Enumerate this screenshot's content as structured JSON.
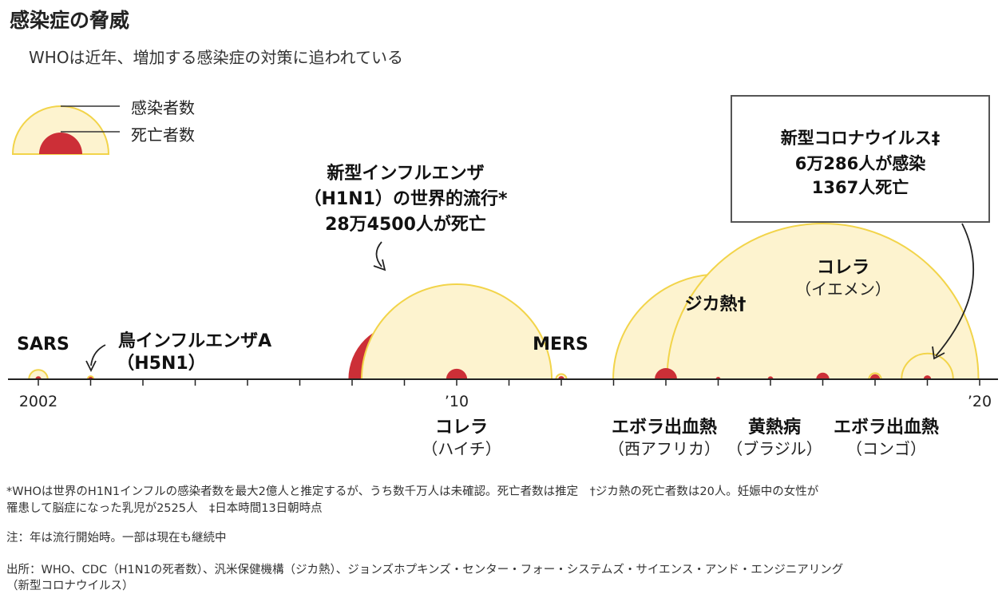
{
  "title": "感染症の脅威",
  "subtitle": "WHOは近年、増加する感染症の対策に追われている",
  "legend": {
    "infected_label": "感染者数",
    "deaths_label": "死亡者数"
  },
  "colors": {
    "infected_fill": "#fdf3cf",
    "infected_stroke": "#f2d44a",
    "deaths_fill": "#cc2f37",
    "axis": "#222222"
  },
  "chart_data": {
    "type": "bubble-timeline",
    "x_ticks": [
      {
        "year": 2002,
        "label": "2002"
      },
      {
        "year": 2010,
        "label": "’10"
      },
      {
        "year": 2020,
        "label": "’20"
      }
    ],
    "xlim": [
      2002,
      2020
    ],
    "events": [
      {
        "name": "SARS",
        "year": 2002,
        "infected": 8000,
        "deaths": 800
      },
      {
        "name": "鳥インフルエンザA",
        "name_sub": "（H5N1）",
        "year": 2003,
        "infected": 850,
        "deaths": 450
      },
      {
        "name": "新型インフルエンザ",
        "name_sub": "（H1N1）の世界的流行*",
        "note": "28万4500人が死亡",
        "year": 2009,
        "infected": null,
        "deaths": 284500
      },
      {
        "name": "コレラ",
        "name_sub": "（ハイチ）",
        "year": 2010,
        "infected": 820000,
        "deaths": 10000
      },
      {
        "name": "MERS",
        "year": 2012,
        "infected": 2500,
        "deaths": 860
      },
      {
        "name": "エボラ出血熱",
        "name_sub": "（西アフリカ）",
        "year": 2014,
        "infected": 28600,
        "deaths": 11300
      },
      {
        "name": "ジカ熱†",
        "year": 2015,
        "infected": 1000000,
        "deaths": 20
      },
      {
        "name": "黄熱病",
        "name_sub": "（ブラジル）",
        "year": 2016,
        "infected": 2100,
        "deaths": 750
      },
      {
        "name": "コレラ",
        "name_sub": "（イエメン）",
        "year": 2017,
        "infected": 2200000,
        "deaths": 3900
      },
      {
        "name": "エボラ出血熱",
        "name_sub": "（コンゴ）",
        "year": 2018,
        "infected": 3400,
        "deaths": 2250
      },
      {
        "name": "新型コロナウイルス‡",
        "year": 2019,
        "infected": 60286,
        "deaths": 1367
      }
    ]
  },
  "callout": {
    "line1": "新型コロナウイルス‡",
    "line2": "6万286人が感染",
    "line3": "1367人死亡"
  },
  "labels": {
    "sars": "SARS",
    "h5n1": "鳥インフルエンザA",
    "h5n1_sub": "（H5N1）",
    "h1n1_1": "新型インフルエンザ",
    "h1n1_2": "（H1N1）の世界的流行*",
    "h1n1_3": "28万4500人が死亡",
    "mers": "MERS",
    "zika": "ジカ熱†",
    "cholera_yemen": "コレラ",
    "cholera_yemen_sub": "（イエメン）",
    "cholera_haiti": "コレラ",
    "cholera_haiti_sub": "（ハイチ）",
    "ebola_wa": "エボラ出血熱",
    "ebola_wa_sub": "（西アフリカ）",
    "yellow": "黄熱病",
    "yellow_sub": "（ブラジル）",
    "ebola_congo": "エボラ出血熱",
    "ebola_congo_sub": "（コンゴ）"
  },
  "footnotes": {
    "line1": "*WHOは世界のH1N1インフルの感染者数を最大2億人と推定するが、うち数千万人は未確認。死亡者数は推定　†ジカ熱の死亡者数は20人。妊娠中の女性が",
    "line2": "罹患して脳症になった乳児が2525人　‡日本時間13日朝時点",
    "note": "注：年は流行開始時。一部は現在も継続中",
    "source1": "出所：WHO、CDC（H1N1の死者数）、汎米保健機構（ジカ熱）、ジョンズホプキンズ・センター・フォー・システムズ・サイエンス・アンド・エンジニアリング",
    "source2": "（新型コロナウイルス）"
  }
}
